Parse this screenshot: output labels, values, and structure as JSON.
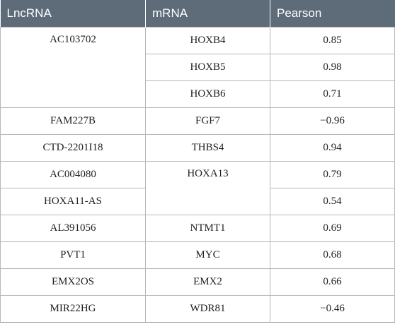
{
  "table": {
    "headers": [
      "LncRNA",
      "mRNA",
      "Pearson"
    ],
    "rows": [
      {
        "lncrna": "AC103702",
        "mrna": "HOXB4",
        "pearson": "0.85"
      },
      {
        "mrna": "HOXB5",
        "pearson": "0.98"
      },
      {
        "mrna": "HOXB6",
        "pearson": "0.71"
      },
      {
        "lncrna": "FAM227B",
        "mrna": "FGF7",
        "pearson": "−0.96"
      },
      {
        "lncrna": "CTD-2201I18",
        "mrna": "THBS4",
        "pearson": "0.94"
      },
      {
        "lncrna": "AC004080",
        "mrna": "HOXA13",
        "pearson": "0.79"
      },
      {
        "lncrna": "HOXA11-AS",
        "pearson": "0.54"
      },
      {
        "lncrna": "AL391056",
        "mrna": "NTMT1",
        "pearson": "0.69"
      },
      {
        "lncrna": "PVT1",
        "mrna": "MYC",
        "pearson": "0.68"
      },
      {
        "lncrna": "EMX2OS",
        "mrna": "EMX2",
        "pearson": "0.66"
      },
      {
        "lncrna": "MIR22HG",
        "mrna": "WDR81",
        "pearson": "−0.46"
      }
    ]
  }
}
